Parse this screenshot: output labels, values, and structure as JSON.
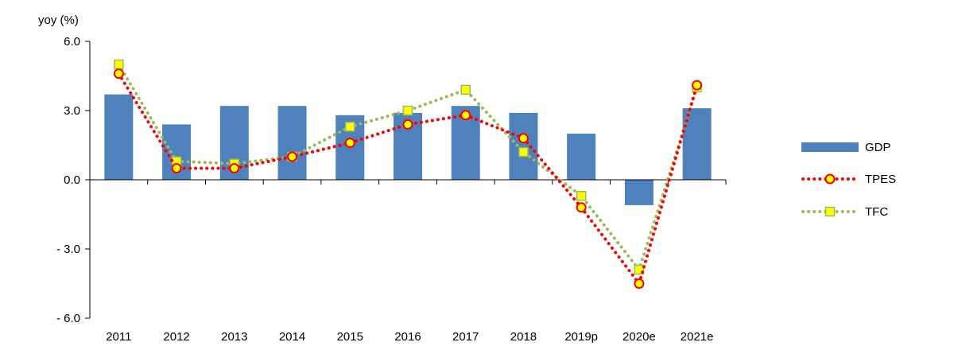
{
  "chart_data": {
    "type": "bar",
    "ylabel": "yoy (%)",
    "ylim": [
      -6.0,
      6.0
    ],
    "yticks": [
      6.0,
      3.0,
      0.0,
      -3.0,
      -6.0
    ],
    "ytick_labels": [
      "6.0",
      "3.0",
      "0.0",
      "- 3.0",
      "- 6.0"
    ],
    "categories": [
      "2011",
      "2012",
      "2013",
      "2014",
      "2015",
      "2016",
      "2017",
      "2018",
      "2019p",
      "2020e",
      "2021e"
    ],
    "grid": false,
    "legend_position": "right",
    "series": [
      {
        "name": "GDP",
        "type": "bar",
        "color": "#4f81bd",
        "values": [
          3.7,
          2.4,
          3.2,
          3.2,
          2.8,
          2.9,
          3.2,
          2.9,
          2.0,
          -1.1,
          3.1
        ]
      },
      {
        "name": "TPES",
        "type": "line",
        "line_style": "dotted",
        "color": "#ff0000",
        "marker": "circle",
        "marker_fill": "#ffff00",
        "values": [
          4.6,
          0.5,
          0.5,
          1.0,
          1.6,
          2.4,
          2.8,
          1.8,
          -1.2,
          -4.5,
          4.1
        ]
      },
      {
        "name": "TFC",
        "type": "line",
        "line_style": "dotted",
        "color": "#9bbb59",
        "marker": "square",
        "marker_fill": "#ffff00",
        "values": [
          5.0,
          0.8,
          0.7,
          1.0,
          2.3,
          3.0,
          3.9,
          1.2,
          -0.7,
          -3.9,
          4.0
        ]
      }
    ]
  }
}
